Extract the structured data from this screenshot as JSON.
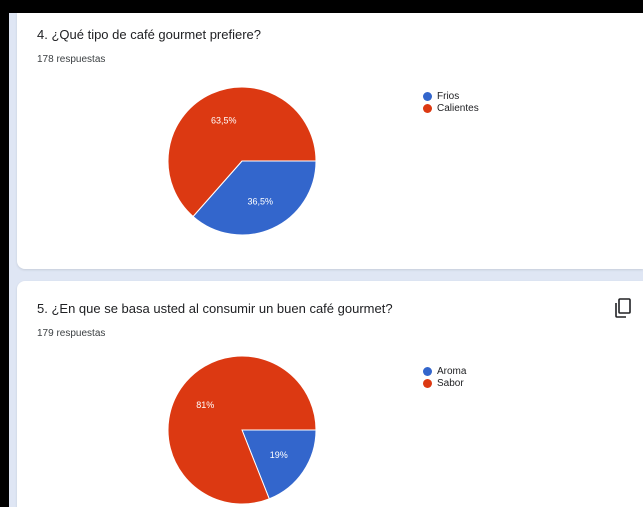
{
  "colors": {
    "blue": "#3366cc",
    "red": "#dc3912"
  },
  "charts": [
    {
      "question": "4. ¿Qué tipo de café gourmet prefiere?",
      "responses": "178 respuestas"
    },
    {
      "question": "5. ¿En que se basa usted al consumir un buen café gourmet?",
      "responses": "179 respuestas",
      "copy_icon": "copy-icon"
    }
  ],
  "chart_data": [
    {
      "type": "pie",
      "categories": [
        "Frios",
        "Calientes"
      ],
      "values": [
        36.5,
        63.5
      ],
      "labels": [
        "36,5%",
        "63,5%"
      ],
      "colors": [
        "#3366cc",
        "#dc3912"
      ],
      "legend": "right"
    },
    {
      "type": "pie",
      "categories": [
        "Aroma",
        "Sabor"
      ],
      "values": [
        19,
        81
      ],
      "labels": [
        "19%",
        "81%"
      ],
      "colors": [
        "#3366cc",
        "#dc3912"
      ],
      "legend": "right"
    }
  ]
}
